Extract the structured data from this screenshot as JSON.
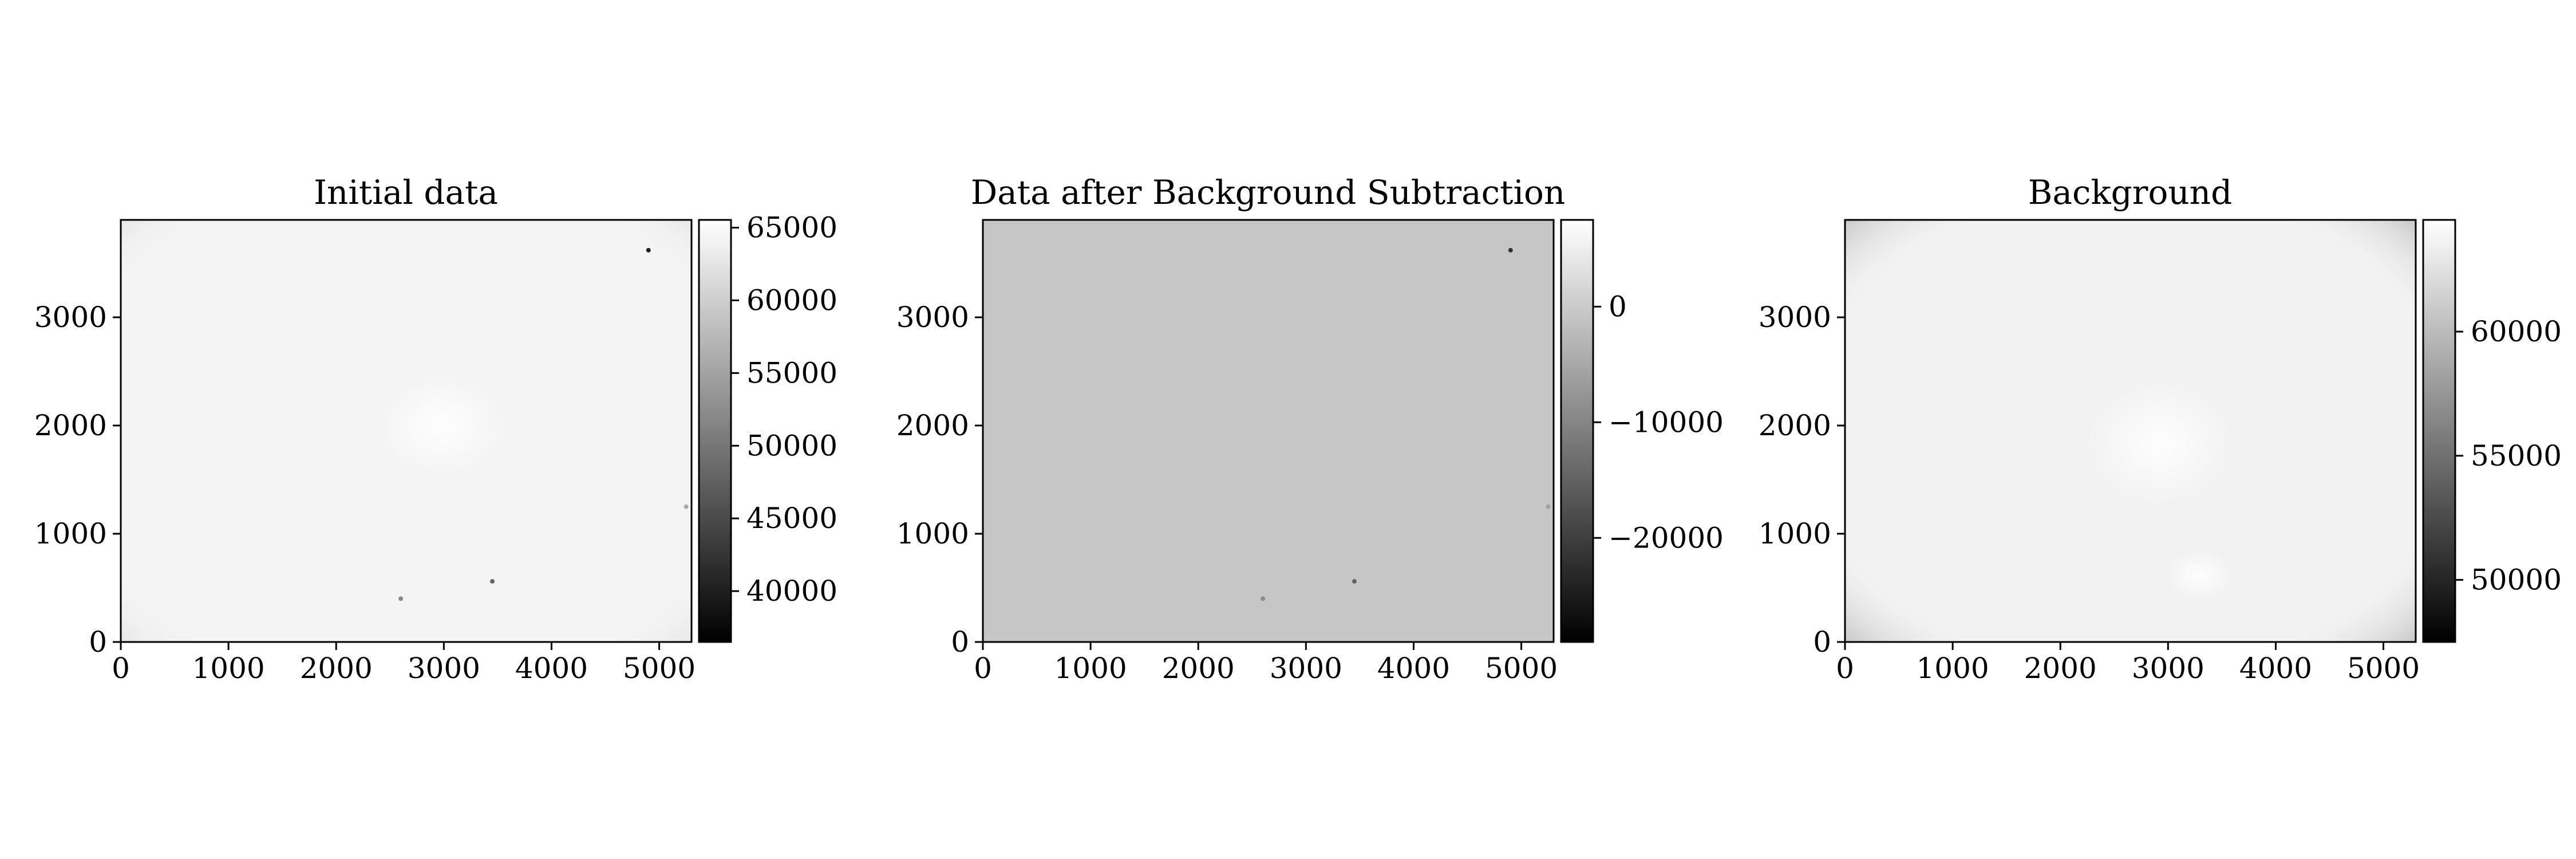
{
  "chart_data": [
    {
      "type": "heatmap",
      "title": "Initial data",
      "xlim": [
        0,
        5300
      ],
      "ylim": [
        0,
        3900
      ],
      "xticks": [
        "0",
        "1000",
        "2000",
        "3000",
        "4000",
        "5000"
      ],
      "yticks": [
        "0",
        "1000",
        "2000",
        "3000"
      ],
      "colormap": "gray",
      "base_color": "#f4f4f4",
      "colorbar": {
        "range": [
          36500,
          65535
        ],
        "ticks": [
          "40000",
          "45000",
          "50000",
          "55000",
          "60000",
          "65000"
        ]
      },
      "features": [
        {
          "x": 4900,
          "y": 3620,
          "value": 40000
        },
        {
          "x": 3450,
          "y": 560,
          "value": 48000
        },
        {
          "x": 2600,
          "y": 400,
          "value": 52000
        },
        {
          "x": 5250,
          "y": 1250,
          "value": 56000
        }
      ]
    },
    {
      "type": "heatmap",
      "title": "Data after Background Subtraction",
      "xlim": [
        0,
        5300
      ],
      "ylim": [
        0,
        3900
      ],
      "xticks": [
        "0",
        "1000",
        "2000",
        "3000",
        "4000",
        "5000"
      ],
      "yticks": [
        "0",
        "1000",
        "2000",
        "3000"
      ],
      "colormap": "gray",
      "base_color": "#c6c6c6",
      "colorbar": {
        "range": [
          -29000,
          7500
        ],
        "ticks": [
          "0",
          "−10000",
          "−20000"
        ]
      },
      "features": [
        {
          "x": 4900,
          "y": 3620,
          "value": -22000
        },
        {
          "x": 3450,
          "y": 560,
          "value": -15000
        },
        {
          "x": 2600,
          "y": 400,
          "value": -9000
        },
        {
          "x": 5250,
          "y": 1250,
          "value": -6000
        }
      ]
    },
    {
      "type": "heatmap",
      "title": "Background",
      "xlim": [
        0,
        5300
      ],
      "ylim": [
        0,
        3900
      ],
      "xticks": [
        "0",
        "1000",
        "2000",
        "3000",
        "4000",
        "5000"
      ],
      "yticks": [
        "0",
        "1000",
        "2000",
        "3000"
      ],
      "colormap": "gray",
      "base_color": "#f2f2f2",
      "colorbar": {
        "range": [
          47500,
          64500
        ],
        "ticks": [
          "50000",
          "55000",
          "60000"
        ]
      },
      "features": []
    }
  ]
}
